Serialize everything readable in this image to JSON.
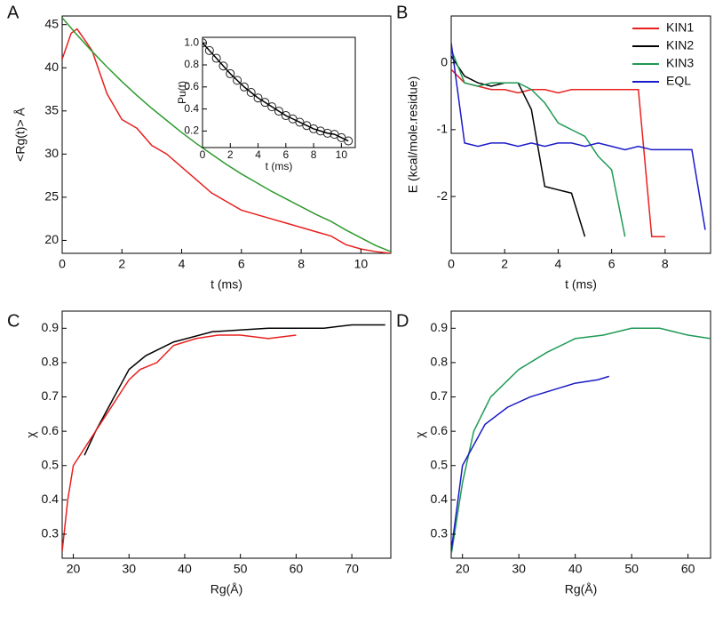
{
  "chart_data": [
    {
      "type": "line",
      "label": "A",
      "xlabel": "t (ms)",
      "ylabel": "<Rg(t)> Å",
      "x": [
        0,
        0.3,
        0.5,
        1,
        1.5,
        2,
        2.5,
        3,
        3.5,
        4,
        4.5,
        5,
        5.5,
        6,
        6.5,
        7,
        7.5,
        8,
        8.5,
        9,
        9.5,
        10,
        10.5,
        11
      ],
      "series": [
        {
          "color": "#e8201e",
          "values": [
            41,
            44,
            44.5,
            42,
            37,
            34,
            33,
            31,
            30,
            28.5,
            27,
            25.5,
            24.5,
            23.5,
            23,
            22.5,
            22,
            21.5,
            21,
            20.5,
            19.5,
            19,
            18.7,
            18.5
          ]
        },
        {
          "color": "#2e9a2e",
          "values": [
            45.8,
            44.6,
            43.8,
            41.9,
            40.1,
            38.4,
            36.8,
            35.3,
            33.9,
            32.5,
            31.2,
            30,
            28.8,
            27.7,
            26.7,
            25.7,
            24.8,
            23.9,
            23,
            22.2,
            21.2,
            20.3,
            19.4,
            18.7
          ]
        }
      ],
      "xlim": [
        0,
        11
      ],
      "ylim": [
        18.5,
        46
      ],
      "xticks": [
        0,
        2,
        4,
        6,
        8,
        10
      ],
      "yticks": [
        20,
        25,
        30,
        35,
        40,
        45
      ]
    },
    {
      "type": "line",
      "xlabel": "t (ms)",
      "ylabel": "Pu(t)",
      "x": [
        0,
        0.5,
        1,
        1.5,
        2,
        2.5,
        3,
        3.5,
        4,
        4.5,
        5,
        5.5,
        6,
        6.5,
        7,
        7.5,
        8,
        8.5,
        9,
        9.5,
        10,
        10.5
      ],
      "series": [
        {
          "color": "#222222",
          "markers": true,
          "values": [
            1.0,
            0.93,
            0.86,
            0.79,
            0.72,
            0.66,
            0.6,
            0.55,
            0.5,
            0.46,
            0.42,
            0.38,
            0.34,
            0.31,
            0.28,
            0.25,
            0.22,
            0.2,
            0.18,
            0.17,
            0.14,
            0.11
          ]
        },
        {
          "color": "#000000",
          "values": [
            1.0,
            0.93,
            0.86,
            0.79,
            0.72,
            0.66,
            0.6,
            0.55,
            0.5,
            0.46,
            0.42,
            0.38,
            0.34,
            0.31,
            0.28,
            0.25,
            0.22,
            0.2,
            0.18,
            0.17,
            0.14,
            0.11
          ]
        }
      ],
      "xlim": [
        0,
        11
      ],
      "ylim": [
        0.05,
        1.05
      ],
      "xticks": [
        0,
        2,
        4,
        6,
        8,
        10
      ],
      "yticks": [
        0.2,
        0.4,
        0.6,
        0.8,
        {
          "value": 1,
          "label": "1.0"
        }
      ]
    },
    {
      "type": "line",
      "label": "B",
      "xlabel": "t (ms)",
      "ylabel": "E (kcal/mole.residue)",
      "legend": "upper right",
      "x": [
        0,
        0.5,
        1,
        1.5,
        2,
        2.5,
        3,
        3.5,
        4,
        4.5,
        5,
        5.5,
        6,
        6.5,
        7,
        7.5,
        8,
        8.5,
        9,
        9.5
      ],
      "series": [
        {
          "name": "KIN1",
          "color": "#e8201e",
          "values": [
            -0.1,
            -0.3,
            -0.35,
            -0.4,
            -0.4,
            -0.45,
            -0.4,
            -0.4,
            -0.45,
            -0.4,
            -0.4,
            -0.4,
            -0.4,
            -0.4,
            -0.4,
            -2.6,
            -2.6,
            null,
            null,
            null
          ]
        },
        {
          "name": "KIN2",
          "color": "#000000",
          "values": [
            0.1,
            -0.2,
            -0.3,
            -0.35,
            -0.3,
            -0.3,
            -0.7,
            -1.85,
            -1.9,
            -1.95,
            -2.6,
            null,
            null,
            null,
            null,
            null,
            null,
            null,
            null,
            null
          ]
        },
        {
          "name": "KIN3",
          "color": "#1f9a55",
          "values": [
            0.2,
            -0.3,
            -0.35,
            -0.3,
            -0.3,
            -0.3,
            -0.4,
            -0.6,
            -0.9,
            -1.0,
            -1.1,
            -1.4,
            -1.6,
            -2.6,
            null,
            null,
            null,
            null,
            null,
            null
          ]
        },
        {
          "name": "EQL",
          "color": "#1a1ac8",
          "values": [
            0.3,
            -1.2,
            -1.25,
            -1.2,
            -1.2,
            -1.25,
            -1.2,
            -1.25,
            -1.2,
            -1.2,
            -1.25,
            -1.2,
            -1.25,
            -1.3,
            -1.25,
            -1.3,
            -1.3,
            -1.3,
            -1.3,
            -2.5
          ]
        }
      ],
      "xlim": [
        0,
        9.7
      ],
      "ylim": [
        -2.85,
        0.7
      ],
      "xticks": [
        0,
        2,
        4,
        6,
        8
      ],
      "yticks": [
        -2,
        -1,
        0
      ]
    },
    {
      "type": "line",
      "label": "C",
      "xlabel": "Rg(Å)",
      "ylabel": "χ",
      "series": [
        {
          "color": "#000000",
          "x": [
            22,
            24,
            26,
            28,
            30,
            33,
            38,
            45,
            55,
            65,
            70,
            76
          ],
          "values": [
            0.53,
            0.6,
            0.66,
            0.72,
            0.78,
            0.82,
            0.86,
            0.89,
            0.9,
            0.9,
            0.91,
            0.91
          ]
        },
        {
          "color": "#e8201e",
          "x": [
            18,
            19,
            20,
            22,
            24,
            26,
            28,
            30,
            32,
            35,
            38,
            42,
            46,
            50,
            55,
            60
          ],
          "values": [
            0.25,
            0.4,
            0.5,
            0.55,
            0.6,
            0.65,
            0.7,
            0.75,
            0.78,
            0.8,
            0.85,
            0.87,
            0.88,
            0.88,
            0.87,
            0.88
          ]
        }
      ],
      "xlim": [
        18,
        77
      ],
      "ylim": [
        0.23,
        0.95
      ],
      "xticks": [
        20,
        30,
        40,
        50,
        60,
        70
      ],
      "yticks": [
        0.3,
        0.4,
        0.5,
        0.6,
        0.7,
        0.8,
        0.9
      ]
    },
    {
      "type": "line",
      "label": "D",
      "xlabel": "Rg(Å)",
      "ylabel": "χ",
      "series": [
        {
          "color": "#1f9a55",
          "x": [
            18,
            20,
            22,
            25,
            30,
            35,
            40,
            45,
            50,
            55,
            60,
            64
          ],
          "values": [
            0.24,
            0.45,
            0.6,
            0.7,
            0.78,
            0.83,
            0.87,
            0.88,
            0.9,
            0.9,
            0.88,
            0.87
          ]
        },
        {
          "color": "#1a1ac8",
          "x": [
            18,
            20,
            24,
            28,
            32,
            36,
            40,
            44,
            46
          ],
          "values": [
            0.25,
            0.5,
            0.62,
            0.67,
            0.7,
            0.72,
            0.74,
            0.75,
            0.76
          ]
        }
      ],
      "xlim": [
        18,
        64
      ],
      "ylim": [
        0.23,
        0.95
      ],
      "xticks": [
        20,
        30,
        40,
        50,
        60
      ],
      "yticks": [
        0.3,
        0.4,
        0.5,
        0.6,
        0.7,
        0.8,
        0.9
      ]
    }
  ]
}
